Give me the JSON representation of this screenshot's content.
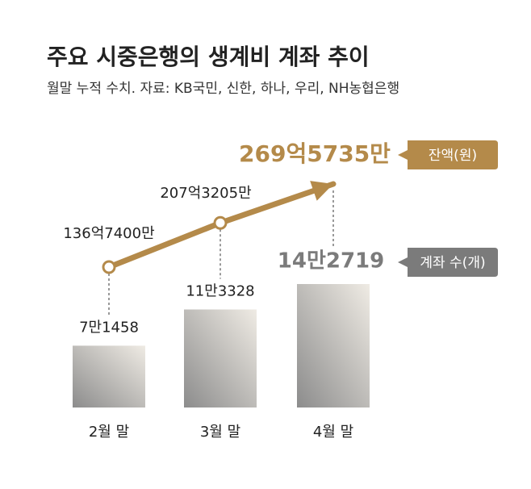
{
  "chart_data": {
    "type": "combo",
    "title": "주요 시중은행의 생계비 계좌 추이",
    "subtitle": "월말 누적 수치. 자료: KB국민, 신한, 하나, 우리, NH농협은행",
    "categories": [
      "2월 말",
      "3월 말",
      "4월 말"
    ],
    "series": [
      {
        "name": "잔액(원)",
        "type": "line",
        "color": "#b48a4a",
        "values": [
          13674000000,
          20732050000,
          26957350000
        ],
        "value_labels": [
          "136억7400만",
          "207억3205만",
          "269억5735만"
        ]
      },
      {
        "name": "계좌 수(개)",
        "type": "bar",
        "color": "#7b7b7b",
        "values": [
          71458,
          113328,
          142719
        ],
        "value_labels": [
          "7만1458",
          "11만3328",
          "14만2719"
        ]
      }
    ]
  }
}
